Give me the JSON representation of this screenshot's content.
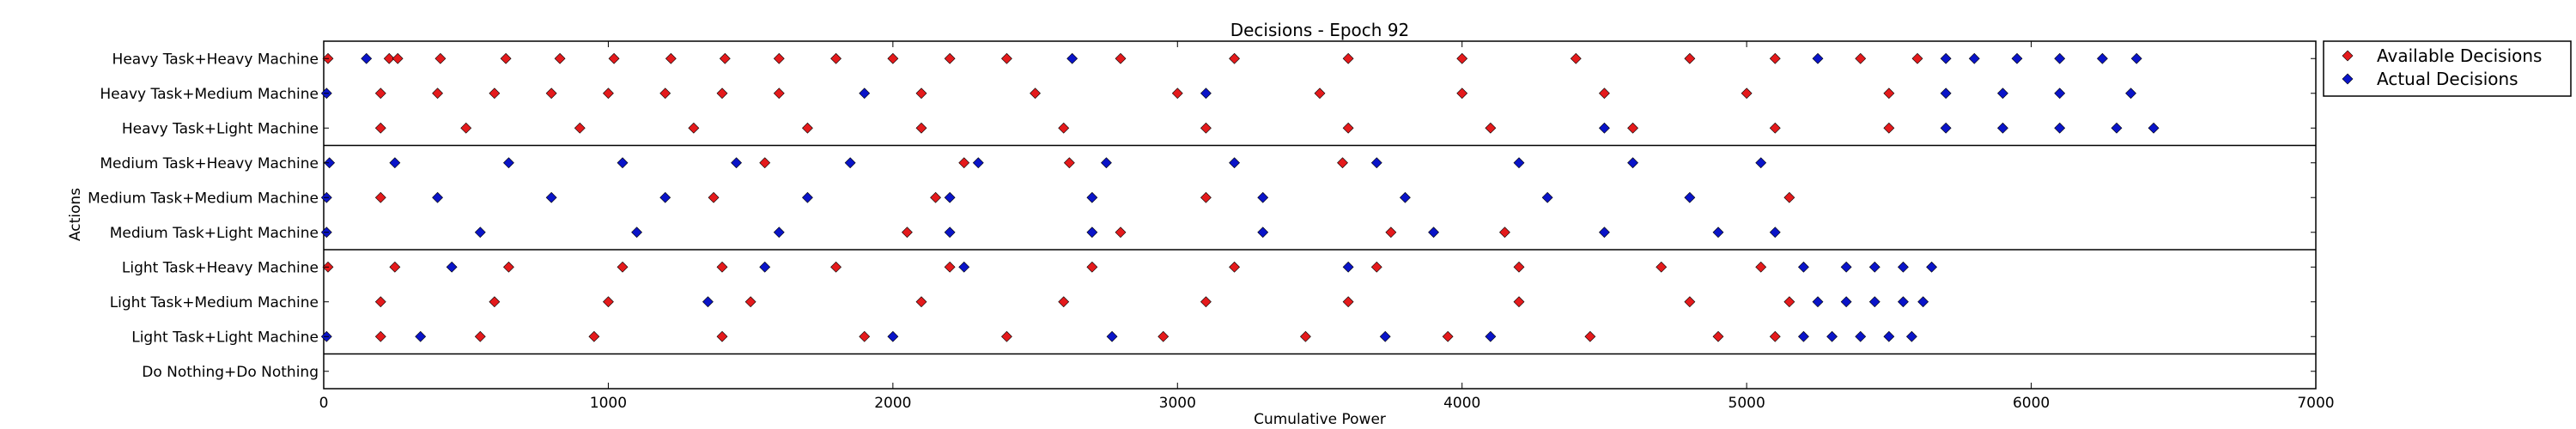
{
  "chart_data": {
    "type": "scatter",
    "title": "Decisions - Epoch 92",
    "xlabel": "Cumulative Power",
    "ylabel": "Actions",
    "xlim": [
      0,
      7000
    ],
    "xticks": [
      0,
      1000,
      2000,
      3000,
      4000,
      5000,
      6000,
      7000
    ],
    "grid": false,
    "legend_position": "outside-right-top",
    "categories": [
      "Heavy Task+Heavy Machine",
      "Heavy Task+Medium Machine",
      "Heavy Task+Light Machine",
      "Medium Task+Heavy Machine",
      "Medium Task+Medium Machine",
      "Medium Task+Light Machine",
      "Light Task+Heavy Machine",
      "Light Task+Medium Machine",
      "Light Task+Light Machine",
      "Do Nothing+Do Nothing"
    ],
    "colors": {
      "available": "#e41a1c",
      "actual": "#0a14c8"
    },
    "series": [
      {
        "name": "Available Decisions",
        "marker": "diamond",
        "points": [
          {
            "x": 15,
            "y": "Heavy Task+Heavy Machine"
          },
          {
            "x": 230,
            "y": "Heavy Task+Heavy Machine"
          },
          {
            "x": 260,
            "y": "Heavy Task+Heavy Machine"
          },
          {
            "x": 410,
            "y": "Heavy Task+Heavy Machine"
          },
          {
            "x": 640,
            "y": "Heavy Task+Heavy Machine"
          },
          {
            "x": 830,
            "y": "Heavy Task+Heavy Machine"
          },
          {
            "x": 1020,
            "y": "Heavy Task+Heavy Machine"
          },
          {
            "x": 1220,
            "y": "Heavy Task+Heavy Machine"
          },
          {
            "x": 1410,
            "y": "Heavy Task+Heavy Machine"
          },
          {
            "x": 1600,
            "y": "Heavy Task+Heavy Machine"
          },
          {
            "x": 1800,
            "y": "Heavy Task+Heavy Machine"
          },
          {
            "x": 2000,
            "y": "Heavy Task+Heavy Machine"
          },
          {
            "x": 2200,
            "y": "Heavy Task+Heavy Machine"
          },
          {
            "x": 2400,
            "y": "Heavy Task+Heavy Machine"
          },
          {
            "x": 2800,
            "y": "Heavy Task+Heavy Machine"
          },
          {
            "x": 3200,
            "y": "Heavy Task+Heavy Machine"
          },
          {
            "x": 3600,
            "y": "Heavy Task+Heavy Machine"
          },
          {
            "x": 4000,
            "y": "Heavy Task+Heavy Machine"
          },
          {
            "x": 4400,
            "y": "Heavy Task+Heavy Machine"
          },
          {
            "x": 4800,
            "y": "Heavy Task+Heavy Machine"
          },
          {
            "x": 5100,
            "y": "Heavy Task+Heavy Machine"
          },
          {
            "x": 5400,
            "y": "Heavy Task+Heavy Machine"
          },
          {
            "x": 5600,
            "y": "Heavy Task+Heavy Machine"
          },
          {
            "x": 200,
            "y": "Heavy Task+Medium Machine"
          },
          {
            "x": 400,
            "y": "Heavy Task+Medium Machine"
          },
          {
            "x": 600,
            "y": "Heavy Task+Medium Machine"
          },
          {
            "x": 800,
            "y": "Heavy Task+Medium Machine"
          },
          {
            "x": 1000,
            "y": "Heavy Task+Medium Machine"
          },
          {
            "x": 1200,
            "y": "Heavy Task+Medium Machine"
          },
          {
            "x": 1400,
            "y": "Heavy Task+Medium Machine"
          },
          {
            "x": 1600,
            "y": "Heavy Task+Medium Machine"
          },
          {
            "x": 2100,
            "y": "Heavy Task+Medium Machine"
          },
          {
            "x": 2500,
            "y": "Heavy Task+Medium Machine"
          },
          {
            "x": 3000,
            "y": "Heavy Task+Medium Machine"
          },
          {
            "x": 3500,
            "y": "Heavy Task+Medium Machine"
          },
          {
            "x": 4000,
            "y": "Heavy Task+Medium Machine"
          },
          {
            "x": 4500,
            "y": "Heavy Task+Medium Machine"
          },
          {
            "x": 5000,
            "y": "Heavy Task+Medium Machine"
          },
          {
            "x": 5500,
            "y": "Heavy Task+Medium Machine"
          },
          {
            "x": 200,
            "y": "Heavy Task+Light Machine"
          },
          {
            "x": 500,
            "y": "Heavy Task+Light Machine"
          },
          {
            "x": 900,
            "y": "Heavy Task+Light Machine"
          },
          {
            "x": 1300,
            "y": "Heavy Task+Light Machine"
          },
          {
            "x": 1700,
            "y": "Heavy Task+Light Machine"
          },
          {
            "x": 2100,
            "y": "Heavy Task+Light Machine"
          },
          {
            "x": 2600,
            "y": "Heavy Task+Light Machine"
          },
          {
            "x": 3100,
            "y": "Heavy Task+Light Machine"
          },
          {
            "x": 3600,
            "y": "Heavy Task+Light Machine"
          },
          {
            "x": 4100,
            "y": "Heavy Task+Light Machine"
          },
          {
            "x": 4600,
            "y": "Heavy Task+Light Machine"
          },
          {
            "x": 5100,
            "y": "Heavy Task+Light Machine"
          },
          {
            "x": 5500,
            "y": "Heavy Task+Light Machine"
          },
          {
            "x": 1550,
            "y": "Medium Task+Heavy Machine"
          },
          {
            "x": 2250,
            "y": "Medium Task+Heavy Machine"
          },
          {
            "x": 2620,
            "y": "Medium Task+Heavy Machine"
          },
          {
            "x": 3580,
            "y": "Medium Task+Heavy Machine"
          },
          {
            "x": 200,
            "y": "Medium Task+Medium Machine"
          },
          {
            "x": 1370,
            "y": "Medium Task+Medium Machine"
          },
          {
            "x": 2150,
            "y": "Medium Task+Medium Machine"
          },
          {
            "x": 3100,
            "y": "Medium Task+Medium Machine"
          },
          {
            "x": 5150,
            "y": "Medium Task+Medium Machine"
          },
          {
            "x": 2050,
            "y": "Medium Task+Light Machine"
          },
          {
            "x": 2800,
            "y": "Medium Task+Light Machine"
          },
          {
            "x": 3750,
            "y": "Medium Task+Light Machine"
          },
          {
            "x": 4150,
            "y": "Medium Task+Light Machine"
          },
          {
            "x": 15,
            "y": "Light Task+Heavy Machine"
          },
          {
            "x": 250,
            "y": "Light Task+Heavy Machine"
          },
          {
            "x": 650,
            "y": "Light Task+Heavy Machine"
          },
          {
            "x": 1050,
            "y": "Light Task+Heavy Machine"
          },
          {
            "x": 1400,
            "y": "Light Task+Heavy Machine"
          },
          {
            "x": 1800,
            "y": "Light Task+Heavy Machine"
          },
          {
            "x": 2200,
            "y": "Light Task+Heavy Machine"
          },
          {
            "x": 2700,
            "y": "Light Task+Heavy Machine"
          },
          {
            "x": 3200,
            "y": "Light Task+Heavy Machine"
          },
          {
            "x": 3700,
            "y": "Light Task+Heavy Machine"
          },
          {
            "x": 4200,
            "y": "Light Task+Heavy Machine"
          },
          {
            "x": 4700,
            "y": "Light Task+Heavy Machine"
          },
          {
            "x": 5050,
            "y": "Light Task+Heavy Machine"
          },
          {
            "x": 200,
            "y": "Light Task+Medium Machine"
          },
          {
            "x": 600,
            "y": "Light Task+Medium Machine"
          },
          {
            "x": 1000,
            "y": "Light Task+Medium Machine"
          },
          {
            "x": 1500,
            "y": "Light Task+Medium Machine"
          },
          {
            "x": 2100,
            "y": "Light Task+Medium Machine"
          },
          {
            "x": 2600,
            "y": "Light Task+Medium Machine"
          },
          {
            "x": 3100,
            "y": "Light Task+Medium Machine"
          },
          {
            "x": 3600,
            "y": "Light Task+Medium Machine"
          },
          {
            "x": 4200,
            "y": "Light Task+Medium Machine"
          },
          {
            "x": 4800,
            "y": "Light Task+Medium Machine"
          },
          {
            "x": 5150,
            "y": "Light Task+Medium Machine"
          },
          {
            "x": 200,
            "y": "Light Task+Light Machine"
          },
          {
            "x": 550,
            "y": "Light Task+Light Machine"
          },
          {
            "x": 950,
            "y": "Light Task+Light Machine"
          },
          {
            "x": 1400,
            "y": "Light Task+Light Machine"
          },
          {
            "x": 1900,
            "y": "Light Task+Light Machine"
          },
          {
            "x": 2400,
            "y": "Light Task+Light Machine"
          },
          {
            "x": 2950,
            "y": "Light Task+Light Machine"
          },
          {
            "x": 3450,
            "y": "Light Task+Light Machine"
          },
          {
            "x": 3950,
            "y": "Light Task+Light Machine"
          },
          {
            "x": 4450,
            "y": "Light Task+Light Machine"
          },
          {
            "x": 4900,
            "y": "Light Task+Light Machine"
          },
          {
            "x": 5100,
            "y": "Light Task+Light Machine"
          }
        ]
      },
      {
        "name": "Actual Decisions",
        "marker": "diamond",
        "points": [
          {
            "x": 150,
            "y": "Heavy Task+Heavy Machine"
          },
          {
            "x": 2630,
            "y": "Heavy Task+Heavy Machine"
          },
          {
            "x": 5250,
            "y": "Heavy Task+Heavy Machine"
          },
          {
            "x": 5700,
            "y": "Heavy Task+Heavy Machine"
          },
          {
            "x": 5800,
            "y": "Heavy Task+Heavy Machine"
          },
          {
            "x": 5950,
            "y": "Heavy Task+Heavy Machine"
          },
          {
            "x": 6100,
            "y": "Heavy Task+Heavy Machine"
          },
          {
            "x": 6250,
            "y": "Heavy Task+Heavy Machine"
          },
          {
            "x": 6370,
            "y": "Heavy Task+Heavy Machine"
          },
          {
            "x": 10,
            "y": "Heavy Task+Medium Machine"
          },
          {
            "x": 1900,
            "y": "Heavy Task+Medium Machine"
          },
          {
            "x": 3100,
            "y": "Heavy Task+Medium Machine"
          },
          {
            "x": 5700,
            "y": "Heavy Task+Medium Machine"
          },
          {
            "x": 5900,
            "y": "Heavy Task+Medium Machine"
          },
          {
            "x": 6100,
            "y": "Heavy Task+Medium Machine"
          },
          {
            "x": 6350,
            "y": "Heavy Task+Medium Machine"
          },
          {
            "x": 4500,
            "y": "Heavy Task+Light Machine"
          },
          {
            "x": 5700,
            "y": "Heavy Task+Light Machine"
          },
          {
            "x": 5900,
            "y": "Heavy Task+Light Machine"
          },
          {
            "x": 6100,
            "y": "Heavy Task+Light Machine"
          },
          {
            "x": 6300,
            "y": "Heavy Task+Light Machine"
          },
          {
            "x": 6430,
            "y": "Heavy Task+Light Machine"
          },
          {
            "x": 20,
            "y": "Medium Task+Heavy Machine"
          },
          {
            "x": 250,
            "y": "Medium Task+Heavy Machine"
          },
          {
            "x": 650,
            "y": "Medium Task+Heavy Machine"
          },
          {
            "x": 1050,
            "y": "Medium Task+Heavy Machine"
          },
          {
            "x": 1450,
            "y": "Medium Task+Heavy Machine"
          },
          {
            "x": 1850,
            "y": "Medium Task+Heavy Machine"
          },
          {
            "x": 2300,
            "y": "Medium Task+Heavy Machine"
          },
          {
            "x": 2750,
            "y": "Medium Task+Heavy Machine"
          },
          {
            "x": 3200,
            "y": "Medium Task+Heavy Machine"
          },
          {
            "x": 3700,
            "y": "Medium Task+Heavy Machine"
          },
          {
            "x": 4200,
            "y": "Medium Task+Heavy Machine"
          },
          {
            "x": 4600,
            "y": "Medium Task+Heavy Machine"
          },
          {
            "x": 5050,
            "y": "Medium Task+Heavy Machine"
          },
          {
            "x": 10,
            "y": "Medium Task+Medium Machine"
          },
          {
            "x": 400,
            "y": "Medium Task+Medium Machine"
          },
          {
            "x": 800,
            "y": "Medium Task+Medium Machine"
          },
          {
            "x": 1200,
            "y": "Medium Task+Medium Machine"
          },
          {
            "x": 1700,
            "y": "Medium Task+Medium Machine"
          },
          {
            "x": 2200,
            "y": "Medium Task+Medium Machine"
          },
          {
            "x": 2700,
            "y": "Medium Task+Medium Machine"
          },
          {
            "x": 3300,
            "y": "Medium Task+Medium Machine"
          },
          {
            "x": 3800,
            "y": "Medium Task+Medium Machine"
          },
          {
            "x": 4300,
            "y": "Medium Task+Medium Machine"
          },
          {
            "x": 4800,
            "y": "Medium Task+Medium Machine"
          },
          {
            "x": 10,
            "y": "Medium Task+Light Machine"
          },
          {
            "x": 550,
            "y": "Medium Task+Light Machine"
          },
          {
            "x": 1100,
            "y": "Medium Task+Light Machine"
          },
          {
            "x": 1600,
            "y": "Medium Task+Light Machine"
          },
          {
            "x": 2200,
            "y": "Medium Task+Light Machine"
          },
          {
            "x": 2700,
            "y": "Medium Task+Light Machine"
          },
          {
            "x": 3300,
            "y": "Medium Task+Light Machine"
          },
          {
            "x": 3900,
            "y": "Medium Task+Light Machine"
          },
          {
            "x": 4500,
            "y": "Medium Task+Light Machine"
          },
          {
            "x": 4900,
            "y": "Medium Task+Light Machine"
          },
          {
            "x": 5100,
            "y": "Medium Task+Light Machine"
          },
          {
            "x": 450,
            "y": "Light Task+Heavy Machine"
          },
          {
            "x": 1550,
            "y": "Light Task+Heavy Machine"
          },
          {
            "x": 2250,
            "y": "Light Task+Heavy Machine"
          },
          {
            "x": 3600,
            "y": "Light Task+Heavy Machine"
          },
          {
            "x": 5200,
            "y": "Light Task+Heavy Machine"
          },
          {
            "x": 5350,
            "y": "Light Task+Heavy Machine"
          },
          {
            "x": 5450,
            "y": "Light Task+Heavy Machine"
          },
          {
            "x": 5550,
            "y": "Light Task+Heavy Machine"
          },
          {
            "x": 5650,
            "y": "Light Task+Heavy Machine"
          },
          {
            "x": 1350,
            "y": "Light Task+Medium Machine"
          },
          {
            "x": 5250,
            "y": "Light Task+Medium Machine"
          },
          {
            "x": 5350,
            "y": "Light Task+Medium Machine"
          },
          {
            "x": 5450,
            "y": "Light Task+Medium Machine"
          },
          {
            "x": 5550,
            "y": "Light Task+Medium Machine"
          },
          {
            "x": 5620,
            "y": "Light Task+Medium Machine"
          },
          {
            "x": 10,
            "y": "Light Task+Light Machine"
          },
          {
            "x": 340,
            "y": "Light Task+Light Machine"
          },
          {
            "x": 2000,
            "y": "Light Task+Light Machine"
          },
          {
            "x": 2770,
            "y": "Light Task+Light Machine"
          },
          {
            "x": 3730,
            "y": "Light Task+Light Machine"
          },
          {
            "x": 4100,
            "y": "Light Task+Light Machine"
          },
          {
            "x": 5200,
            "y": "Light Task+Light Machine"
          },
          {
            "x": 5300,
            "y": "Light Task+Light Machine"
          },
          {
            "x": 5400,
            "y": "Light Task+Light Machine"
          },
          {
            "x": 5500,
            "y": "Light Task+Light Machine"
          },
          {
            "x": 5580,
            "y": "Light Task+Light Machine"
          }
        ]
      }
    ]
  }
}
